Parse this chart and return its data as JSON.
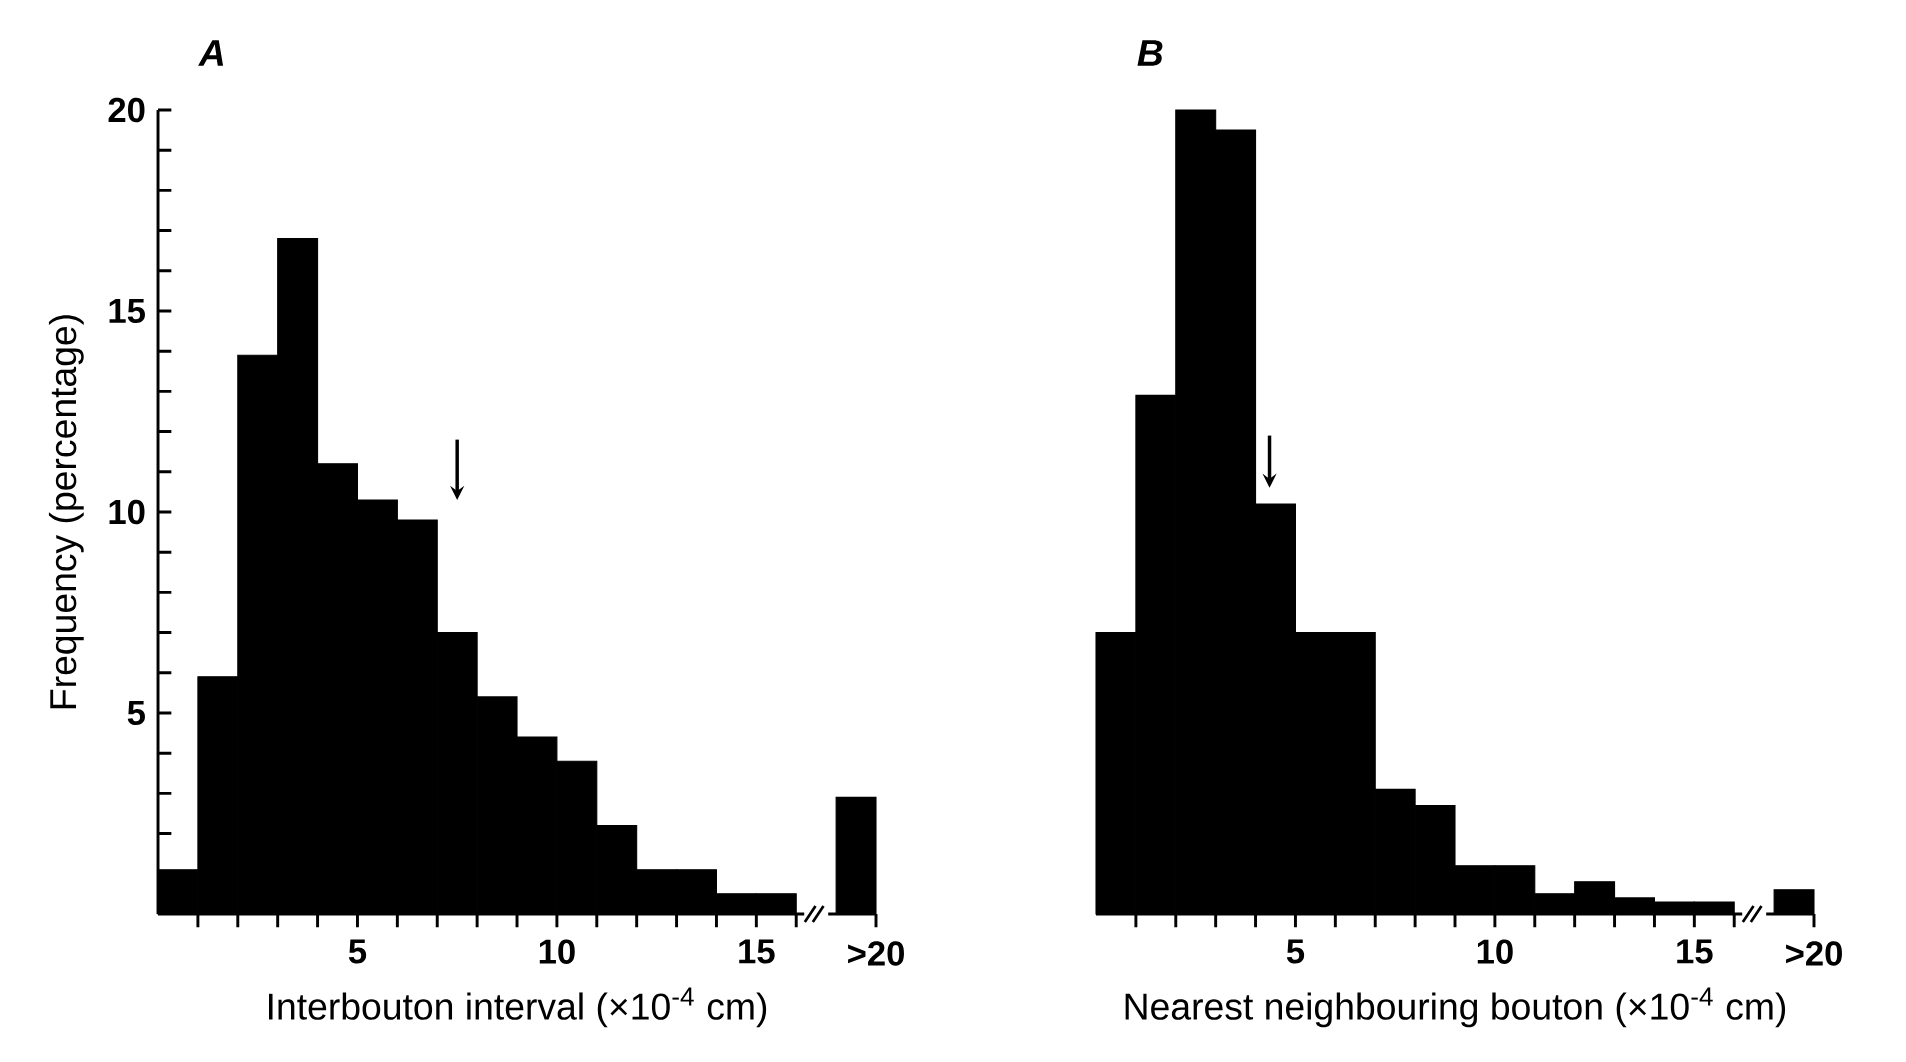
{
  "chart_data": [
    {
      "type": "histogram",
      "title": "A",
      "xlabel": "Interbouton interval (×10$^{-4}$ cm)",
      "ylabel": "Frequency (percentage)",
      "bins": [
        0,
        1,
        2,
        3,
        4,
        5,
        6,
        7,
        8,
        9,
        10,
        11,
        12,
        13,
        14,
        15,
        16,
        17,
        18
      ],
      "values": [
        1.1,
        5.9,
        13.9,
        16.8,
        11.2,
        10.3,
        9.8,
        7.0,
        5.4,
        4.4,
        3.8,
        2.2,
        1.1,
        1.1,
        0.5,
        0.5,
        null,
        2.9
      ],
      "color": "#000000",
      "xlim": [
        0,
        18
      ],
      "ylim": [
        0,
        20
      ],
      "xticks": [
        {
          "value": 1,
          "label": null
        },
        {
          "value": 2,
          "label": null
        },
        {
          "value": 3,
          "label": null
        },
        {
          "value": 4,
          "label": null
        },
        5,
        {
          "value": 6,
          "label": null
        },
        {
          "value": 7,
          "label": null
        },
        {
          "value": 8,
          "label": null
        },
        {
          "value": 9,
          "label": null
        },
        10,
        {
          "value": 11,
          "label": null
        },
        {
          "value": 12,
          "label": null
        },
        {
          "value": 13,
          "label": null
        },
        {
          "value": 14,
          "label": null
        },
        15,
        {
          "value": 16,
          "label": null
        },
        {
          "value": 18,
          "label": null
        }
      ],
      "annotations": [
        ">20"
      ],
      "yticks": [
        {
          "value": 1,
          "label": null
        },
        {
          "value": 2,
          "label": null
        },
        {
          "value": 3,
          "label": null
        },
        {
          "value": 4,
          "label": null
        },
        5,
        {
          "value": 6,
          "label": null
        },
        {
          "value": 7,
          "label": null
        },
        {
          "value": 8,
          "label": null
        },
        {
          "value": 9,
          "label": null
        },
        10,
        {
          "value": 11,
          "label": null
        },
        {
          "value": 12,
          "label": null
        },
        {
          "value": 13,
          "label": null
        },
        {
          "value": 14,
          "label": null
        },
        15,
        {
          "value": 16,
          "label": null
        },
        {
          "value": 17,
          "label": null
        },
        {
          "value": 18,
          "label": null
        },
        {
          "value": 19,
          "label": null
        },
        20
      ]
    },
    {
      "type": "histogram",
      "title": "B",
      "xlabel": "Nearest neighbouring bouton (×10$^{-4}$ cm)",
      "bins": [
        0,
        1,
        2,
        3,
        4,
        5,
        6,
        7,
        8,
        9,
        10,
        11,
        12,
        13,
        14,
        15,
        16,
        17,
        18
      ],
      "values": [
        7.0,
        12.9,
        20.0,
        19.5,
        10.2,
        7.0,
        7.0,
        3.1,
        2.7,
        1.2,
        1.2,
        0.5,
        0.8,
        0.4,
        0.3,
        0.3,
        null,
        0.6
      ],
      "color": "#000000",
      "xlim": [
        0,
        18
      ],
      "ylim": [
        0,
        20
      ],
      "xticks": [
        {
          "value": 1,
          "label": null
        },
        {
          "value": 2,
          "label": null
        },
        {
          "value": 3,
          "label": null
        },
        {
          "value": 4,
          "label": null
        },
        5,
        {
          "value": 6,
          "label": null
        },
        {
          "value": 7,
          "label": null
        },
        {
          "value": 8,
          "label": null
        },
        {
          "value": 9,
          "label": null
        },
        10,
        {
          "value": 11,
          "label": null
        },
        {
          "value": 12,
          "label": null
        },
        {
          "value": 13,
          "label": null
        },
        {
          "value": 14,
          "label": null
        },
        15,
        {
          "value": 16,
          "label": null
        },
        {
          "value": 18,
          "label": null
        }
      ],
      "annotations": [
        ">20"
      ],
      "tick_labels": "x"
    }
  ]
}
